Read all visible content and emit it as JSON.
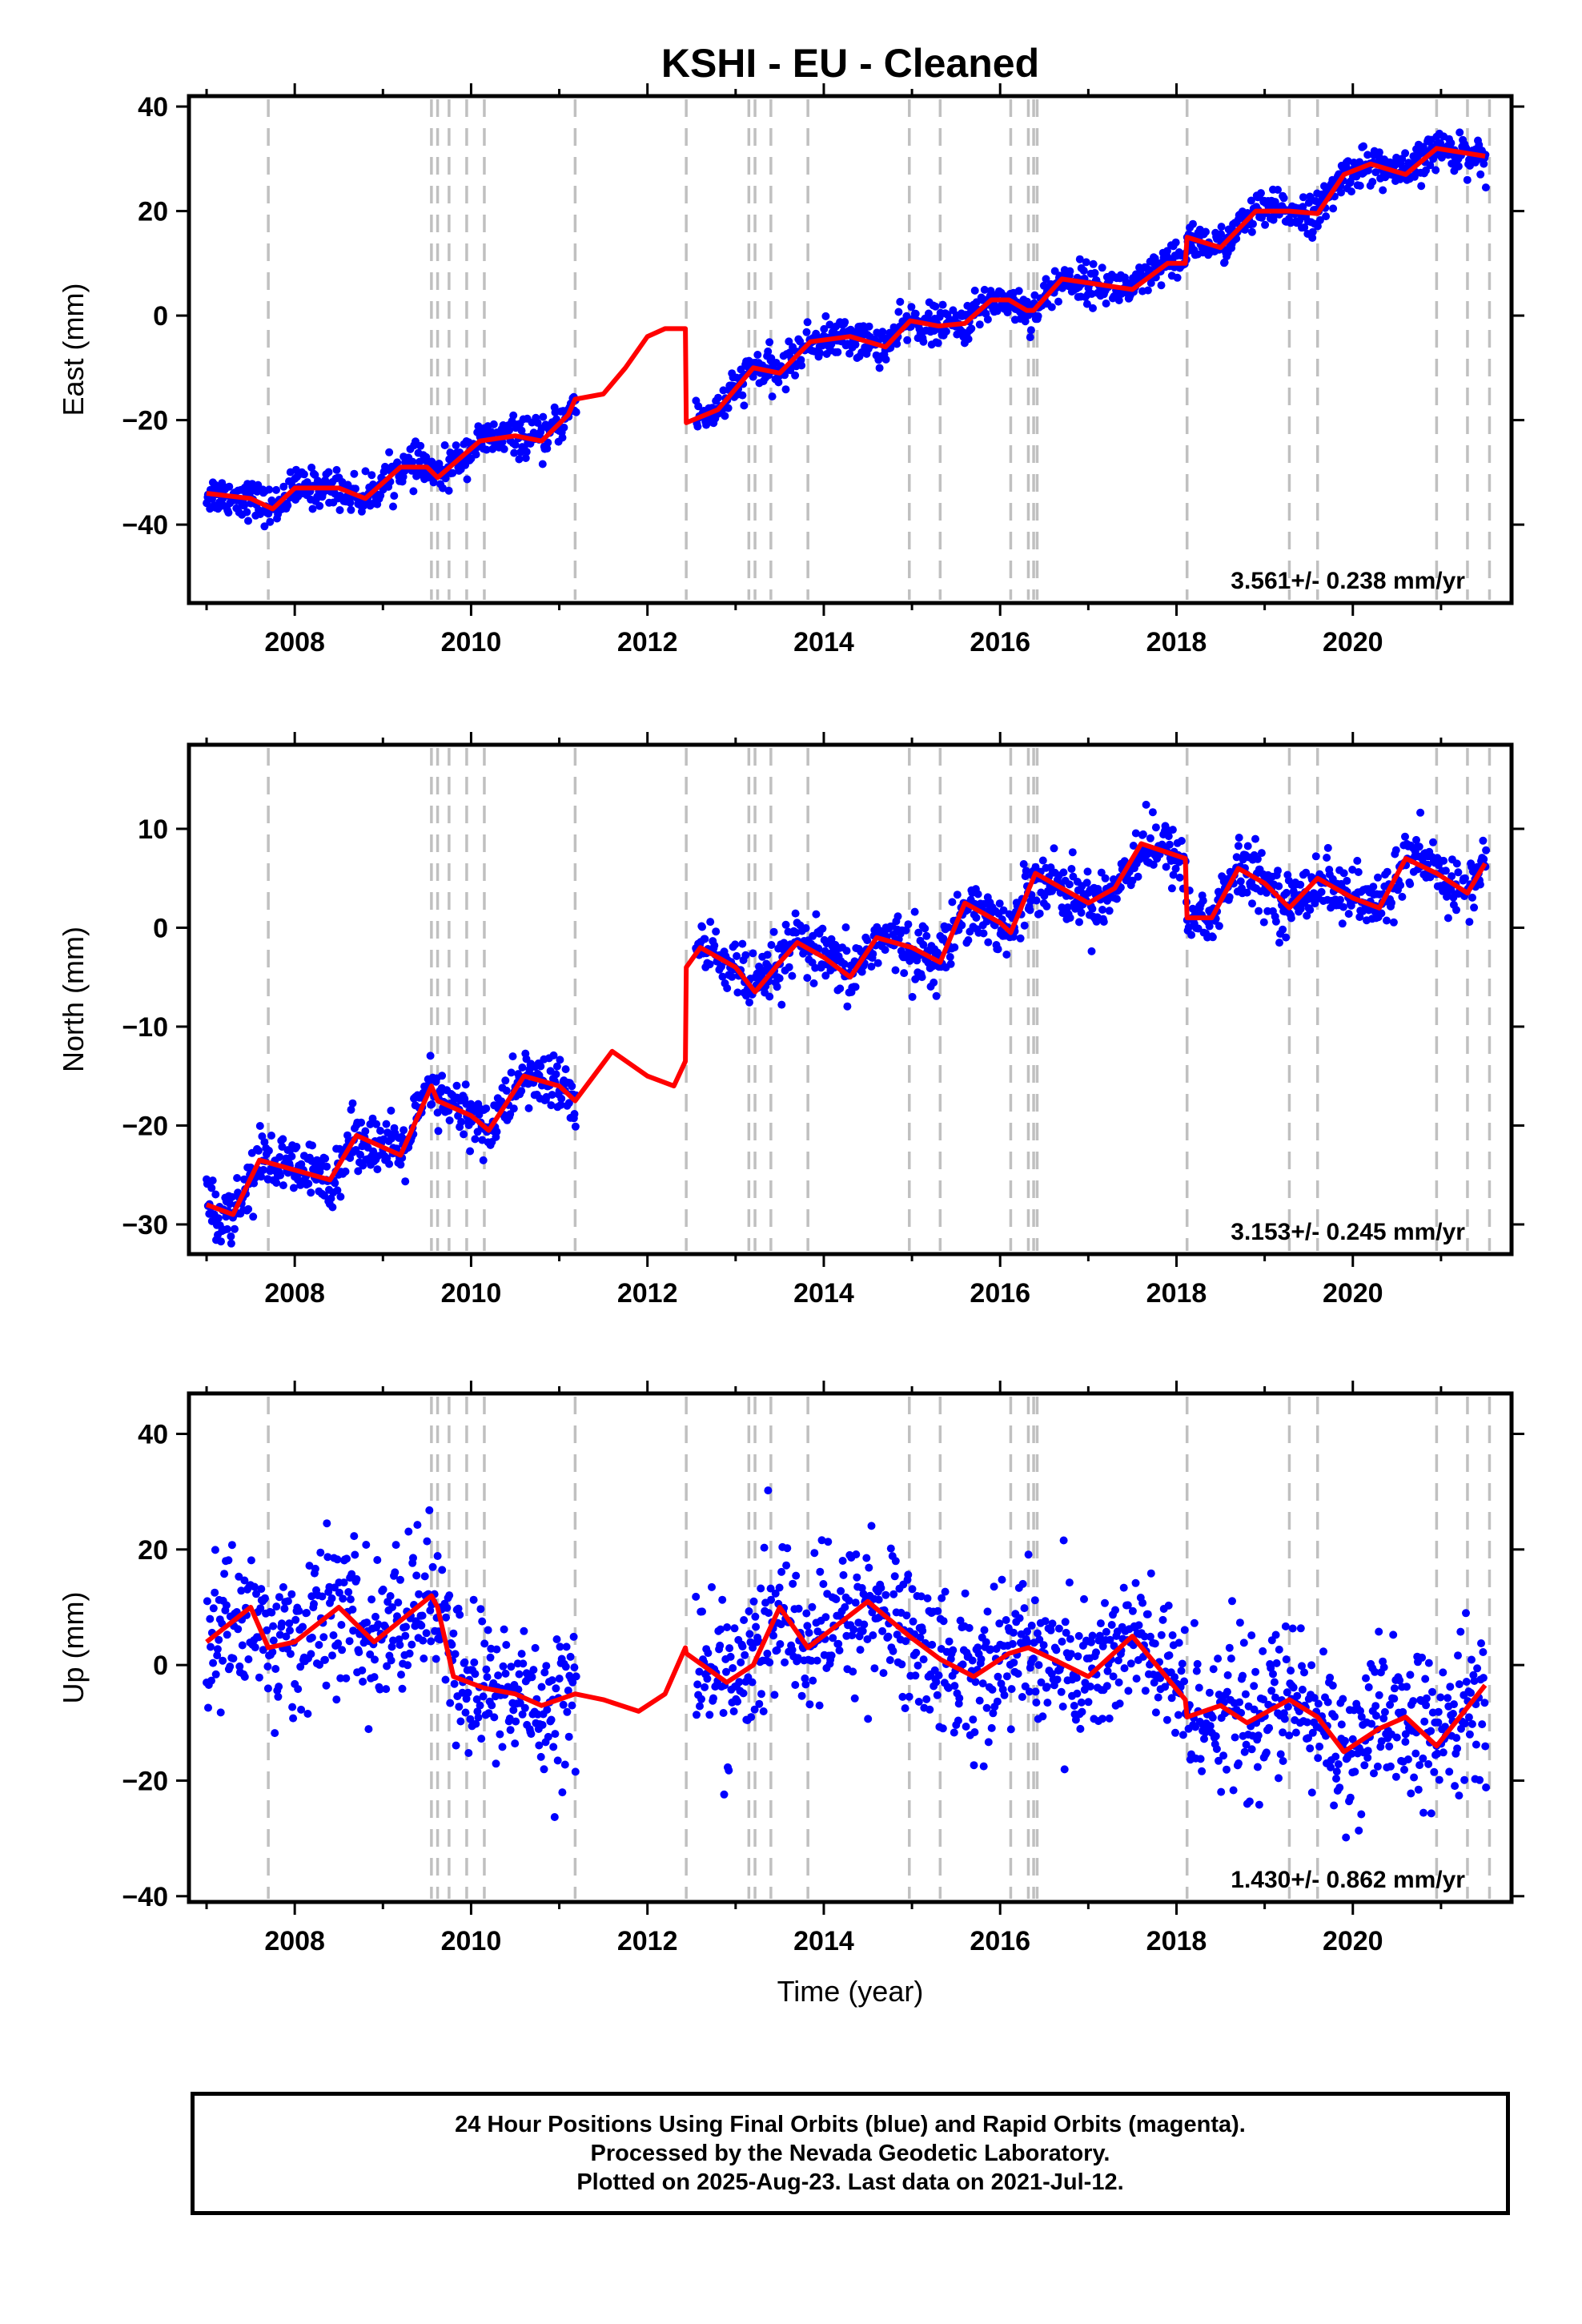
{
  "chart_data": [
    {
      "type": "scatter",
      "title": "KSHI  - EU - Cleaned",
      "ylabel": "East (mm)",
      "xlabel": "",
      "xlim": [
        2006.8,
        2021.8
      ],
      "ylim": [
        -55,
        42
      ],
      "x_ticks": [
        2008,
        2010,
        2012,
        2014,
        2016,
        2018,
        2020
      ],
      "y_ticks": [
        -40,
        -20,
        0,
        20,
        40
      ],
      "rate_label": "3.561+/- 0.238 mm/yr",
      "series": [
        {
          "marker": "dot",
          "color": "#0000ff",
          "segments": [
            [
              2007.0,
              2011.2
            ],
            [
              2012.55,
              2021.52
            ]
          ]
        },
        {
          "marker": "line",
          "color": "#ff0000",
          "x": [
            2007.0,
            2007.5,
            2007.75,
            2008.0,
            2008.5,
            2008.8,
            2009.2,
            2009.5,
            2009.62,
            2010.1,
            2010.5,
            2010.8,
            2011.1,
            2011.18,
            2011.5,
            2011.75,
            2012.0,
            2012.2,
            2012.43,
            2012.44,
            2012.8,
            2013.2,
            2013.5,
            2013.85,
            2014.3,
            2014.7,
            2014.98,
            2015.3,
            2015.6,
            2015.9,
            2016.1,
            2016.3,
            2016.38,
            2016.7,
            2017.1,
            2017.5,
            2017.9,
            2018.1,
            2018.12,
            2018.5,
            2018.9,
            2019.2,
            2019.28,
            2019.6,
            2019.9,
            2020.2,
            2020.6,
            2020.95,
            2021.5
          ],
          "y": [
            -34,
            -35,
            -37,
            -33,
            -33,
            -35,
            -29,
            -29,
            -31,
            -24,
            -23,
            -24,
            -19,
            -16,
            -15,
            -10,
            -4,
            -2.5,
            -2.5,
            -20.5,
            -18,
            -10,
            -11,
            -5,
            -4,
            -6,
            -1,
            -2,
            -1.5,
            3,
            3,
            1,
            1,
            7,
            6,
            5,
            10,
            10,
            15,
            13,
            20,
            20,
            20,
            19.5,
            27,
            29,
            27,
            32,
            30.5
          ]
        }
      ],
      "breaks_x": [
        2007.7,
        2009.55,
        2009.62,
        2009.75,
        2009.95,
        2010.15,
        2011.18,
        2012.44,
        2013.15,
        2013.22,
        2013.4,
        2013.82,
        2014.97,
        2015.32,
        2016.12,
        2016.32,
        2016.38,
        2016.42,
        2018.12,
        2019.28,
        2019.6,
        2020.95,
        2021.3,
        2021.55
      ]
    },
    {
      "type": "scatter",
      "title": "",
      "ylabel": "North (mm)",
      "xlabel": "",
      "xlim": [
        2006.8,
        2021.8
      ],
      "ylim": [
        -33,
        18.5
      ],
      "x_ticks": [
        2008,
        2010,
        2012,
        2014,
        2016,
        2018,
        2020
      ],
      "y_ticks": [
        -30,
        -20,
        -10,
        0,
        10
      ],
      "rate_label": "3.153+/- 0.245 mm/yr",
      "series": [
        {
          "marker": "dot",
          "color": "#0000ff",
          "segments": [
            [
              2007.0,
              2011.2
            ],
            [
              2012.55,
              2021.52
            ]
          ]
        },
        {
          "marker": "line",
          "color": "#ff0000",
          "x": [
            2007.0,
            2007.3,
            2007.6,
            2008.0,
            2008.4,
            2008.7,
            2009.2,
            2009.55,
            2009.62,
            2010.0,
            2010.2,
            2010.6,
            2011.0,
            2011.18,
            2011.6,
            2012.0,
            2012.3,
            2012.43,
            2012.44,
            2012.6,
            2013.0,
            2013.22,
            2013.5,
            2013.7,
            2014.0,
            2014.3,
            2014.6,
            2015.0,
            2015.32,
            2015.6,
            2016.0,
            2016.12,
            2016.4,
            2016.7,
            2017.0,
            2017.3,
            2017.6,
            2018.1,
            2018.12,
            2018.4,
            2018.7,
            2019.0,
            2019.28,
            2019.6,
            2020.0,
            2020.3,
            2020.6,
            2020.95,
            2021.3,
            2021.5
          ],
          "y": [
            -28,
            -29,
            -23.5,
            -24.5,
            -25.5,
            -21,
            -23,
            -16,
            -17.5,
            -19,
            -20.5,
            -15,
            -16,
            -17.5,
            -12.5,
            -15,
            -16,
            -13.5,
            -4,
            -2,
            -4,
            -6.5,
            -3.5,
            -1.5,
            -3,
            -5,
            -1,
            -2,
            -3.5,
            2.5,
            0.5,
            -0.5,
            5.5,
            4,
            2.5,
            4,
            8.5,
            7,
            1,
            1,
            6,
            4.5,
            2,
            5,
            3,
            2,
            7,
            5.5,
            3.5,
            6.5
          ]
        }
      ],
      "breaks_x": [
        2007.7,
        2009.55,
        2009.62,
        2009.75,
        2009.95,
        2010.15,
        2011.18,
        2012.44,
        2013.15,
        2013.22,
        2013.4,
        2013.82,
        2014.97,
        2015.32,
        2016.12,
        2016.32,
        2016.38,
        2016.42,
        2018.12,
        2019.28,
        2019.6,
        2020.95,
        2021.3,
        2021.55
      ]
    },
    {
      "type": "scatter",
      "title": "",
      "ylabel": "Up (mm)",
      "xlabel": "Time (year)",
      "xlim": [
        2006.8,
        2021.8
      ],
      "ylim": [
        -41,
        47
      ],
      "x_ticks": [
        2008,
        2010,
        2012,
        2014,
        2016,
        2018,
        2020
      ],
      "y_ticks": [
        -40,
        -20,
        0,
        20,
        40
      ],
      "rate_label": "1.430+/- 0.862 mm/yr",
      "series": [
        {
          "marker": "dot",
          "color": "#0000ff",
          "segments": [
            [
              2007.0,
              2011.2
            ],
            [
              2012.55,
              2021.52
            ]
          ]
        },
        {
          "marker": "line",
          "color": "#ff0000",
          "x": [
            2007.0,
            2007.5,
            2007.7,
            2008.0,
            2008.5,
            2008.9,
            2009.55,
            2009.62,
            2009.8,
            2010.15,
            2010.5,
            2010.8,
            2011.18,
            2011.5,
            2011.9,
            2012.2,
            2012.43,
            2012.44,
            2012.9,
            2013.2,
            2013.5,
            2013.82,
            2014.5,
            2014.97,
            2015.32,
            2015.7,
            2016.1,
            2016.32,
            2016.6,
            2017.0,
            2017.5,
            2018.1,
            2018.12,
            2018.5,
            2018.8,
            2019.28,
            2019.6,
            2019.9,
            2020.3,
            2020.6,
            2020.95,
            2021.5
          ],
          "y": [
            4,
            10,
            3,
            4,
            10,
            4,
            12,
            10,
            -2,
            -4,
            -5,
            -7,
            -5,
            -6,
            -8,
            -5,
            3,
            2,
            -3,
            0,
            10,
            3,
            11,
            5,
            1,
            -2,
            2,
            3,
            1,
            -2,
            5,
            -6,
            -9,
            -7,
            -10,
            -6,
            -9,
            -15,
            -11,
            -9,
            -14,
            -3.5
          ]
        }
      ],
      "breaks_x": [
        2007.7,
        2009.55,
        2009.62,
        2009.75,
        2009.95,
        2010.15,
        2011.18,
        2012.44,
        2013.15,
        2013.22,
        2013.4,
        2013.82,
        2014.97,
        2015.32,
        2016.12,
        2016.32,
        2016.38,
        2016.42,
        2018.12,
        2019.28,
        2019.6,
        2020.95,
        2021.3,
        2021.55
      ]
    }
  ],
  "footer": {
    "line1": "24 Hour Positions Using Final Orbits (blue) and Rapid Orbits (magenta).",
    "line2": "Processed by the Nevada Geodetic Laboratory.",
    "line3": "Plotted on 2025-Aug-23. Last data on 2021-Jul-12."
  }
}
